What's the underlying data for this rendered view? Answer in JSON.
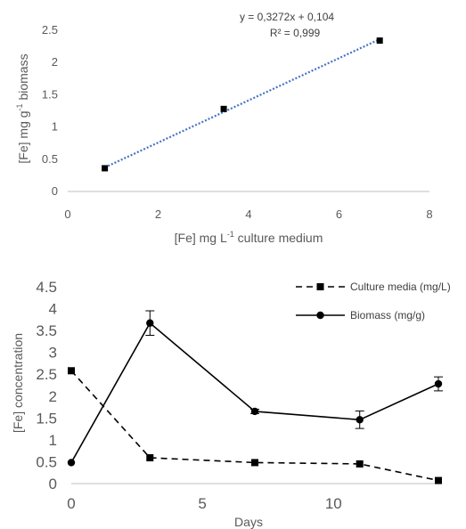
{
  "chart_data": [
    {
      "type": "scatter",
      "title": "",
      "xlabel_main": "[Fe] mg L",
      "xlabel_sup": "-1",
      "xlabel_rest": " culture medium",
      "ylabel_main": "[Fe] mg g",
      "ylabel_sup": "-1",
      "ylabel_rest": " biomass",
      "xlim": [
        0,
        8
      ],
      "ylim": [
        0,
        2.5
      ],
      "xticks": [
        "0",
        "2",
        "4",
        "6",
        "8"
      ],
      "yticks": [
        "0",
        "0.5",
        "1",
        "1.5",
        "2",
        "2.5"
      ],
      "grid": false,
      "series": [
        {
          "points": [
            [
              0.82,
              0.36
            ],
            [
              3.45,
              1.28
            ],
            [
              6.9,
              2.34
            ]
          ]
        }
      ],
      "trendline": {
        "style": "dotted",
        "slope": 0.3272,
        "intercept": 0.104,
        "equation": "y = 0,3272x + 0,104",
        "r2_label": "R² = 0,999"
      },
      "colors": {
        "marker": "#000000",
        "trendline": "#4472c4",
        "axis": "#bfbfbf",
        "text": "#595959"
      }
    },
    {
      "type": "line",
      "title": "",
      "xlabel": "Days",
      "ylabel": "[Fe] concentration",
      "xlim": [
        0,
        14
      ],
      "ylim": [
        0,
        4.5
      ],
      "xticks": [
        "0",
        "5",
        "10"
      ],
      "yticks": [
        "0",
        "0.5",
        "1",
        "1.5",
        "2",
        "2.5",
        "3",
        "3.5",
        "4",
        "4.5"
      ],
      "grid": false,
      "legend_position": "top-right",
      "series": [
        {
          "name": "Culture media (mg/L)",
          "style": "dashed",
          "marker": "square",
          "x": [
            0,
            3,
            7,
            11,
            14
          ],
          "y": [
            2.58,
            0.59,
            0.48,
            0.45,
            0.07
          ],
          "err": [
            0,
            0,
            0,
            0,
            0
          ]
        },
        {
          "name": "Biomass (mg/g)",
          "style": "solid",
          "marker": "circle",
          "x": [
            0,
            3,
            7,
            11,
            14
          ],
          "y": [
            0.48,
            3.67,
            1.65,
            1.46,
            2.28
          ],
          "err": [
            0,
            0.28,
            0.05,
            0.2,
            0.16
          ]
        }
      ],
      "colors": {
        "line": "#000000",
        "axis": "#bfbfbf",
        "text": "#595959"
      }
    }
  ]
}
